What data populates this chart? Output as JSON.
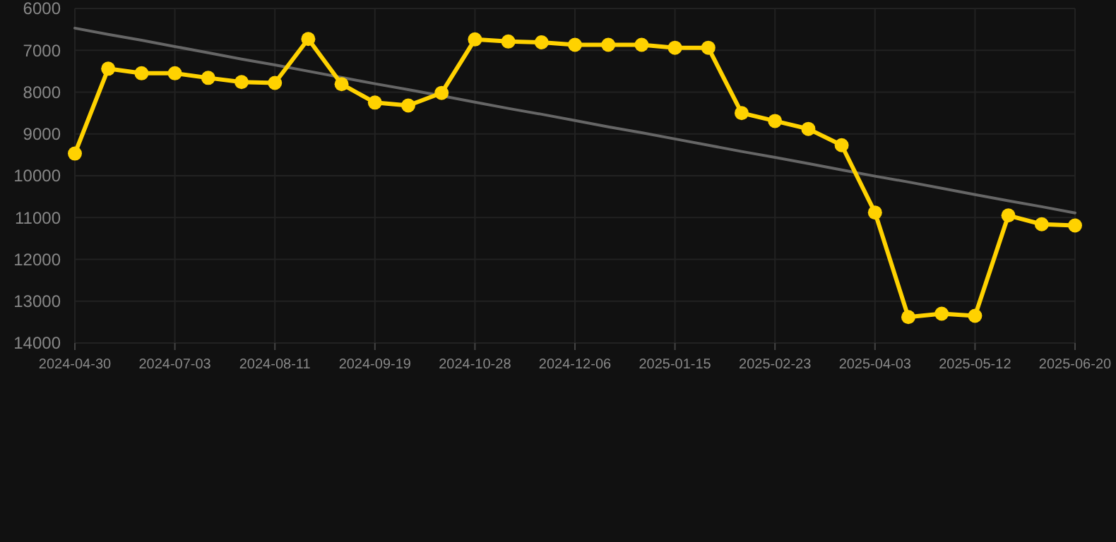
{
  "chart_data": {
    "type": "line",
    "categories": [
      "2024-04-30",
      null,
      null,
      "2024-07-03",
      null,
      null,
      "2024-08-11",
      null,
      null,
      "2024-09-19",
      null,
      null,
      "2024-10-28",
      null,
      null,
      "2024-12-06",
      null,
      null,
      "2025-01-15",
      null,
      null,
      "2025-02-23",
      null,
      null,
      "2025-04-03",
      null,
      null,
      "2025-05-12",
      null,
      null,
      "2025-06-20"
    ],
    "series": [
      {
        "color": "#ffd200",
        "marker": "circle",
        "values": [
          9470,
          7440,
          7550,
          7550,
          7660,
          7760,
          7780,
          6730,
          7810,
          8250,
          8320,
          8020,
          6740,
          6790,
          6810,
          6870,
          6870,
          6870,
          6940,
          6940,
          8500,
          8690,
          8880,
          9270,
          10880,
          13380,
          13300,
          13350,
          10950,
          11160,
          11190
        ]
      },
      {
        "color": "#666666",
        "marker": "none",
        "values": [
          6470,
          6620,
          6760,
          6910,
          7060,
          7210,
          7350,
          7500,
          7650,
          7800,
          7940,
          8090,
          8240,
          8390,
          8530,
          8680,
          8830,
          8970,
          9120,
          9270,
          9420,
          9560,
          9710,
          9860,
          10010,
          10150,
          10300,
          10450,
          10600,
          10740,
          10890
        ]
      }
    ],
    "ylim": [
      14000,
      6000
    ],
    "yticks": [
      6000,
      7000,
      8000,
      9000,
      10000,
      11000,
      12000,
      13000,
      14000
    ],
    "grid": true,
    "line_style": "solid"
  }
}
